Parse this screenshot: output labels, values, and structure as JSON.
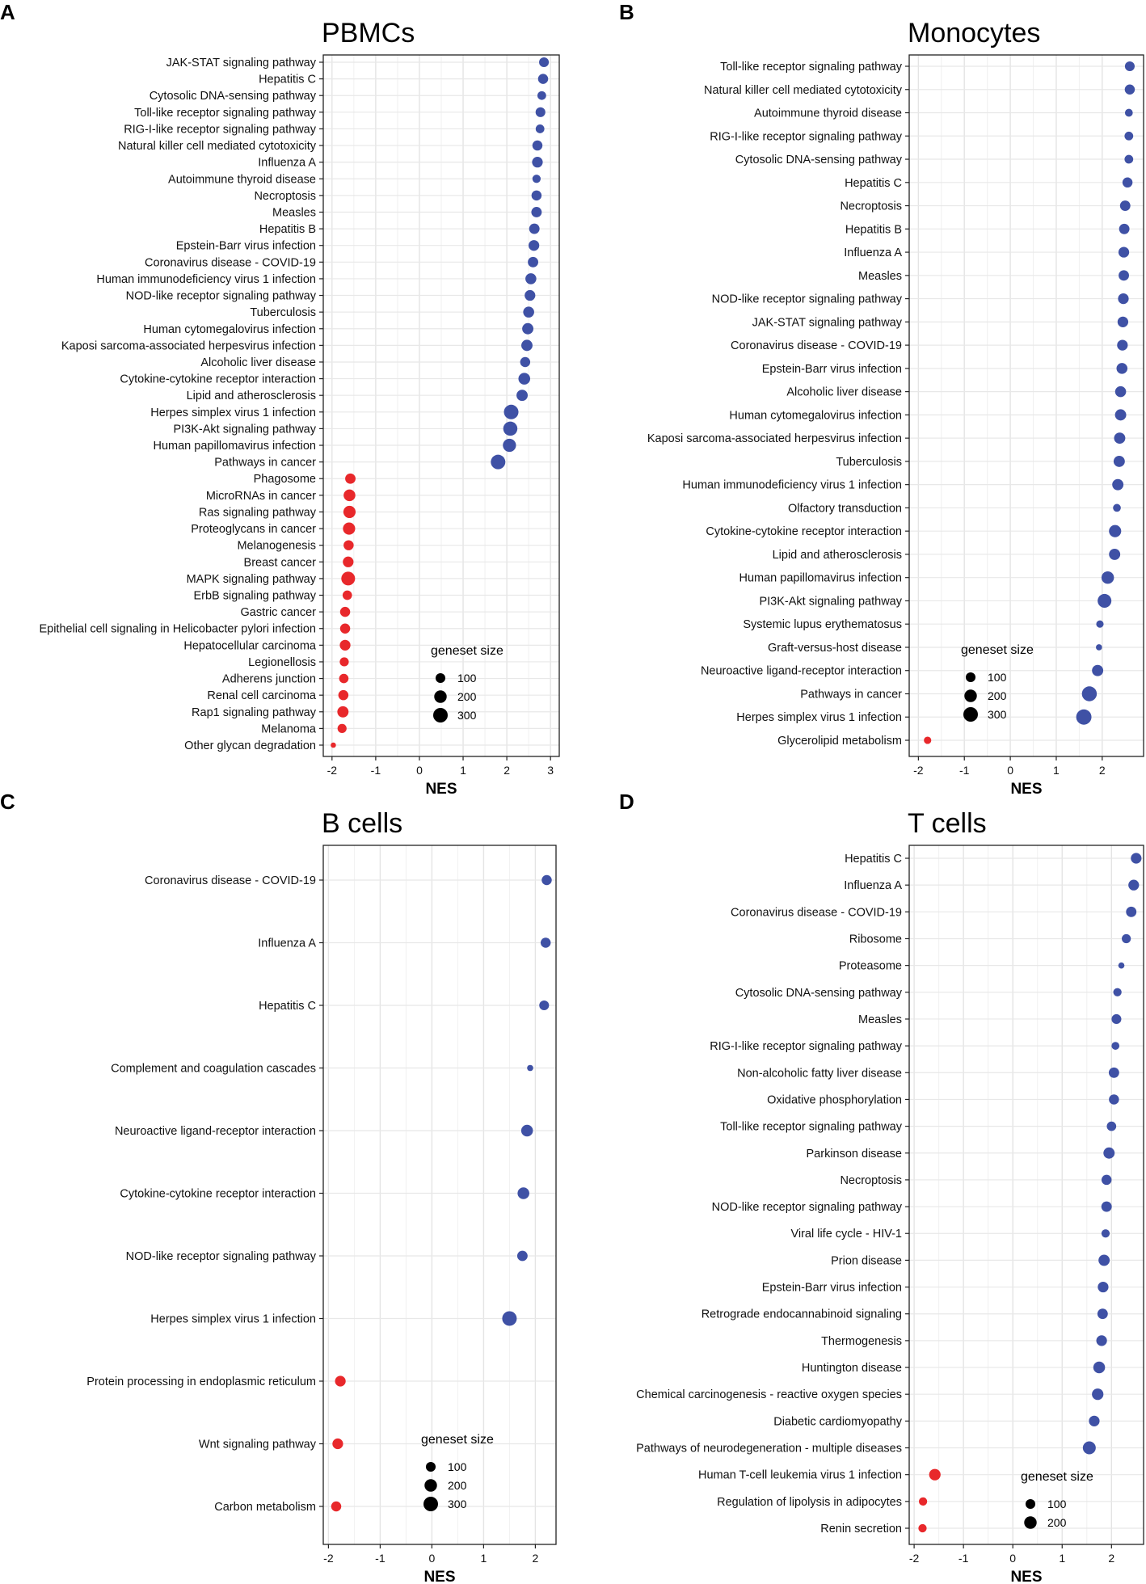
{
  "chart_data": [
    {
      "type": "scatter",
      "panel": "A",
      "title": "PBMCs",
      "xlabel": "NES",
      "xlim": [
        -2.2,
        3.2
      ],
      "xticks": [
        -2,
        -1,
        0,
        1,
        2,
        3
      ],
      "legend_title": "geneset size",
      "legend_sizes": [
        100,
        200,
        300
      ],
      "colors": {
        "up": "#3F51A5",
        "down": "#E8282B"
      },
      "categories": [
        "JAK-STAT signaling pathway",
        "Hepatitis C",
        "Cytosolic DNA-sensing pathway",
        "Toll-like receptor signaling pathway",
        "RIG-I-like receptor signaling pathway",
        "Natural killer cell mediated cytotoxicity",
        "Influenza A",
        "Autoimmune thyroid disease",
        "Necroptosis",
        "Measles",
        "Hepatitis B",
        "Epstein-Barr virus infection",
        "Coronavirus disease - COVID-19",
        "Human immunodeficiency virus 1 infection",
        "NOD-like receptor signaling pathway",
        "Tuberculosis",
        "Human cytomegalovirus infection",
        "Kaposi sarcoma-associated herpesvirus infection",
        "Alcoholic liver disease",
        "Cytokine-cytokine receptor interaction",
        "Lipid and atherosclerosis",
        "Herpes simplex virus 1 infection",
        "PI3K-Akt signaling pathway",
        "Human papillomavirus infection",
        "Pathways in cancer",
        "Phagosome",
        "MicroRNAs in cancer",
        "Ras signaling pathway",
        "Proteoglycans in cancer",
        "Melanogenesis",
        "Breast cancer",
        "MAPK signaling pathway",
        "ErbB signaling pathway",
        "Gastric cancer",
        "Epithelial cell signaling in Helicobacter pylori infection",
        "Hepatocellular carcinoma",
        "Legionellosis",
        "Adherens junction",
        "Renal cell carcinoma",
        "Rap1 signaling pathway",
        "Melanoma",
        "Other glycan degradation"
      ],
      "x": [
        2.85,
        2.83,
        2.8,
        2.77,
        2.76,
        2.7,
        2.7,
        2.68,
        2.68,
        2.68,
        2.63,
        2.62,
        2.6,
        2.55,
        2.53,
        2.5,
        2.48,
        2.46,
        2.42,
        2.4,
        2.35,
        2.1,
        2.08,
        2.06,
        1.8,
        -1.58,
        -1.6,
        -1.6,
        -1.61,
        -1.62,
        -1.63,
        -1.63,
        -1.65,
        -1.7,
        -1.7,
        -1.7,
        -1.72,
        -1.73,
        -1.74,
        -1.75,
        -1.77,
        -1.97
      ],
      "size": [
        100,
        110,
        70,
        100,
        70,
        110,
        130,
        60,
        110,
        120,
        120,
        130,
        120,
        140,
        130,
        140,
        150,
        150,
        110,
        170,
        150,
        300,
        280,
        230,
        300,
        120,
        170,
        190,
        190,
        110,
        130,
        260,
        90,
        110,
        110,
        130,
        80,
        90,
        110,
        150,
        80,
        10
      ]
    },
    {
      "type": "scatter",
      "panel": "B",
      "title": "Monocytes",
      "xlabel": "NES",
      "xlim": [
        -2.2,
        2.9
      ],
      "xticks": [
        -2,
        -1,
        0,
        1,
        2
      ],
      "legend_title": "geneset size",
      "legend_sizes": [
        100,
        200,
        300
      ],
      "colors": {
        "up": "#3F51A5",
        "down": "#E8282B"
      },
      "categories": [
        "Toll-like receptor signaling pathway",
        "Natural killer cell mediated cytotoxicity",
        "Autoimmune thyroid disease",
        "RIG-I-like receptor signaling pathway",
        "Cytosolic DNA-sensing pathway",
        "Hepatitis C",
        "Necroptosis",
        "Hepatitis B",
        "Influenza A",
        "Measles",
        "NOD-like receptor signaling pathway",
        "JAK-STAT signaling pathway",
        "Coronavirus disease - COVID-19",
        "Epstein-Barr virus infection",
        "Alcoholic liver disease",
        "Human cytomegalovirus infection",
        "Kaposi sarcoma-associated herpesvirus infection",
        "Tuberculosis",
        "Human immunodeficiency virus 1 infection",
        "Olfactory transduction",
        "Cytokine-cytokine receptor interaction",
        "Lipid and atherosclerosis",
        "Human papillomavirus infection",
        "PI3K-Akt signaling pathway",
        "Systemic lupus erythematosus",
        "Graft-versus-host disease",
        "Neuroactive ligand-receptor interaction",
        "Pathways in cancer",
        "Herpes simplex virus 1 infection",
        "Glycerolipid metabolism"
      ],
      "x": [
        2.6,
        2.6,
        2.58,
        2.58,
        2.58,
        2.55,
        2.5,
        2.48,
        2.47,
        2.47,
        2.46,
        2.45,
        2.44,
        2.43,
        2.4,
        2.4,
        2.38,
        2.37,
        2.34,
        2.32,
        2.28,
        2.27,
        2.12,
        2.05,
        1.95,
        1.93,
        1.9,
        1.72,
        1.6,
        -1.8
      ],
      "size": [
        100,
        110,
        50,
        70,
        70,
        110,
        120,
        120,
        130,
        120,
        130,
        130,
        130,
        140,
        140,
        150,
        150,
        150,
        150,
        50,
        190,
        150,
        200,
        260,
        40,
        20,
        150,
        320,
        340,
        40
      ]
    },
    {
      "type": "scatter",
      "panel": "C",
      "title": "B cells",
      "xlabel": "NES",
      "xlim": [
        -2.1,
        2.4
      ],
      "xticks": [
        -2,
        -1,
        0,
        1,
        2
      ],
      "legend_title": "geneset size",
      "legend_sizes": [
        100,
        200,
        300
      ],
      "colors": {
        "up": "#3F51A5",
        "down": "#E8282B"
      },
      "categories": [
        "Coronavirus disease - COVID-19",
        "Influenza A",
        "Hepatitis C",
        "Complement and coagulation cascades",
        "Neuroactive ligand-receptor interaction",
        "Cytokine-cytokine receptor interaction",
        "NOD-like receptor signaling pathway",
        "Herpes simplex virus 1 infection",
        "Protein processing in endoplasmic reticulum",
        "Wnt signaling pathway",
        "Carbon metabolism"
      ],
      "x": [
        2.22,
        2.2,
        2.17,
        1.9,
        1.84,
        1.77,
        1.75,
        1.5,
        -1.77,
        -1.82,
        -1.85
      ],
      "size": [
        110,
        110,
        100,
        20,
        170,
        170,
        120,
        300,
        130,
        130,
        110
      ]
    },
    {
      "type": "scatter",
      "panel": "D",
      "title": "T cells",
      "xlabel": "NES",
      "xlim": [
        -2.1,
        2.65
      ],
      "xticks": [
        -2,
        -1,
        0,
        1,
        2
      ],
      "legend_title": "geneset size",
      "legend_sizes": [
        100,
        200
      ],
      "colors": {
        "up": "#3F51A5",
        "down": "#E8282B"
      },
      "categories": [
        "Hepatitis C",
        "Influenza A",
        "Coronavirus disease - COVID-19",
        "Ribosome",
        "Proteasome",
        "Cytosolic DNA-sensing pathway",
        "Measles",
        "RIG-I-like receptor signaling pathway",
        "Non-alcoholic fatty liver disease",
        "Oxidative phosphorylation",
        "Toll-like receptor signaling pathway",
        "Parkinson disease",
        "Necroptosis",
        "NOD-like receptor signaling pathway",
        "Viral life cycle - HIV-1",
        "Prion disease",
        "Epstein-Barr virus infection",
        "Retrograde endocannabinoid signaling",
        "Thermogenesis",
        "Huntington disease",
        "Chemical carcinogenesis - reactive oxygen species",
        "Diabetic cardiomyopathy",
        "Pathways of neurodegeneration - multiple diseases",
        "Human T-cell leukemia virus 1 infection",
        "Regulation of lipolysis in adipocytes",
        "Renin secretion"
      ],
      "x": [
        2.5,
        2.45,
        2.4,
        2.3,
        2.2,
        2.12,
        2.1,
        2.08,
        2.05,
        2.05,
        2.0,
        1.95,
        1.9,
        1.9,
        1.88,
        1.85,
        1.83,
        1.82,
        1.8,
        1.75,
        1.72,
        1.65,
        1.55,
        -1.58,
        -1.82,
        -1.83
      ],
      "size": [
        130,
        130,
        120,
        80,
        20,
        60,
        100,
        50,
        120,
        110,
        90,
        150,
        110,
        120,
        60,
        150,
        130,
        120,
        130,
        170,
        160,
        130,
        220,
        160,
        60,
        60
      ]
    }
  ]
}
